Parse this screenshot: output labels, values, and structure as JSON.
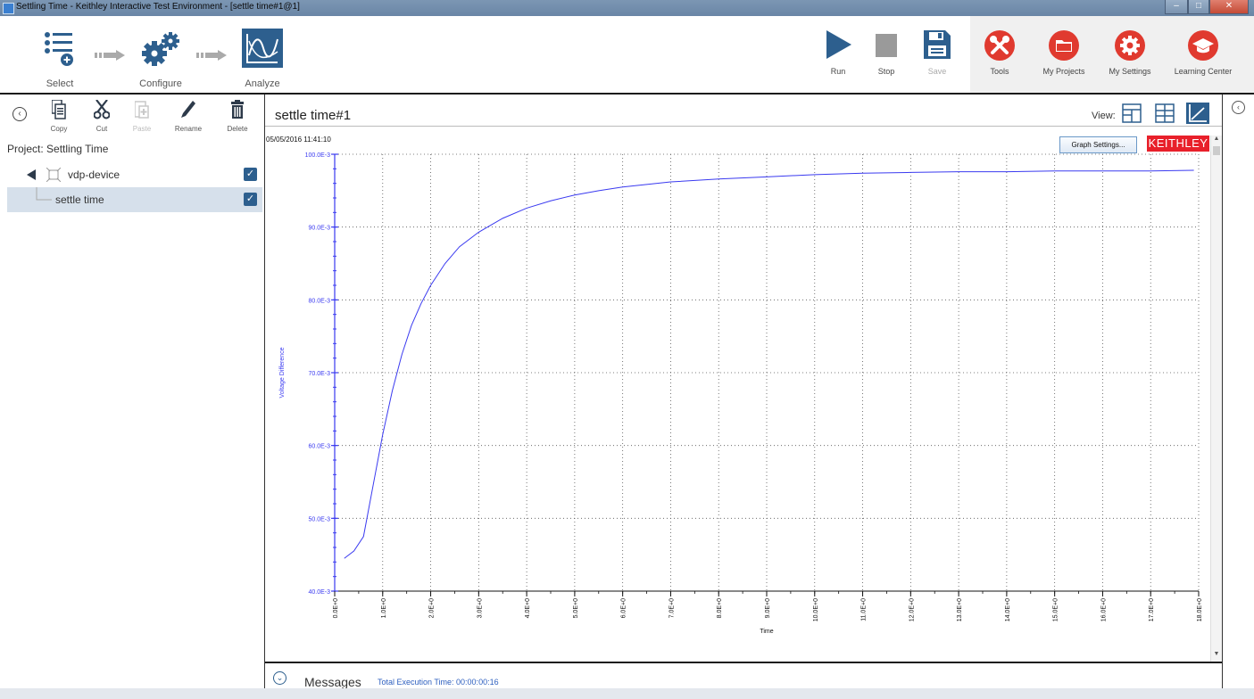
{
  "window": {
    "title": "Settling Time - Keithley Interactive Test Environment - [settle time#1@1]"
  },
  "workflow": [
    {
      "label": "Select",
      "icon": "list-add-icon"
    },
    {
      "label": "Configure",
      "icon": "gears-icon"
    },
    {
      "label": "Analyze",
      "icon": "analyze-graph-icon",
      "active": true
    }
  ],
  "toolbar": {
    "run": "Run",
    "stop": "Stop",
    "save": "Save",
    "tools": "Tools",
    "my_projects": "My Projects",
    "my_settings": "My Settings",
    "learning_center": "Learning Center"
  },
  "project_tools": {
    "copy": "Copy",
    "cut": "Cut",
    "paste": "Paste",
    "rename": "Rename",
    "delete": "Delete"
  },
  "project": {
    "label": "Project: Settling Time",
    "tree": [
      {
        "label": "vdp-device",
        "checked": true
      },
      {
        "label": "settle time",
        "checked": true,
        "selected": true
      }
    ]
  },
  "document": {
    "title": "settle time#1",
    "view_label": "View:",
    "timestamp": "05/05/2016 11:41:10",
    "graph_settings": "Graph Settings...",
    "brand": "KEITHLEY"
  },
  "messages": {
    "label": "Messages",
    "execution_time": "Total Execution Time: 00:00:00:16"
  },
  "colors": {
    "accent": "#2d5f8e",
    "series": "#3a3af0",
    "brand": "#e8202a",
    "tool_red": "#e03a2f"
  },
  "chart_data": {
    "type": "line",
    "xlabel": "Time",
    "ylabel": "Voltage Difference",
    "xlim": [
      0,
      18
    ],
    "ylim": [
      0.04,
      0.1
    ],
    "xticks": [
      "0.0E+0",
      "1.0E+0",
      "2.0E+0",
      "3.0E+0",
      "4.0E+0",
      "5.0E+0",
      "6.0E+0",
      "7.0E+0",
      "8.0E+0",
      "9.0E+0",
      "10.0E+0",
      "11.0E+0",
      "12.0E+0",
      "13.0E+0",
      "14.0E+0",
      "15.0E+0",
      "16.0E+0",
      "17.0E+0",
      "18.0E+0"
    ],
    "yticks": [
      {
        "v": 0.04,
        "label": "40.0E-3"
      },
      {
        "v": 0.05,
        "label": "50.0E-3"
      },
      {
        "v": 0.06,
        "label": "60.0E-3"
      },
      {
        "v": 0.07,
        "label": "70.0E-3"
      },
      {
        "v": 0.08,
        "label": "80.0E-3"
      },
      {
        "v": 0.09,
        "label": "90.0E-3"
      },
      {
        "v": 0.1,
        "label": "100.0E-3"
      }
    ],
    "grid": true,
    "series": [
      {
        "x": [
          0.2,
          0.4,
          0.6,
          0.8,
          1.0,
          1.2,
          1.4,
          1.6,
          1.8,
          2.0,
          2.3,
          2.6,
          3.0,
          3.5,
          4.0,
          4.5,
          5.0,
          5.5,
          6.0,
          7.0,
          8.0,
          9.0,
          10.0,
          11.0,
          12.0,
          13.0,
          14.0,
          15.0,
          16.0,
          17.0,
          17.9
        ],
        "y": [
          0.0445,
          0.0455,
          0.0475,
          0.0545,
          0.0615,
          0.0675,
          0.0725,
          0.0765,
          0.0795,
          0.082,
          0.085,
          0.0873,
          0.0893,
          0.0912,
          0.0926,
          0.0936,
          0.0944,
          0.095,
          0.0955,
          0.0962,
          0.0966,
          0.0969,
          0.0972,
          0.0974,
          0.0975,
          0.0976,
          0.0976,
          0.0977,
          0.0977,
          0.0977,
          0.0978
        ]
      }
    ]
  }
}
